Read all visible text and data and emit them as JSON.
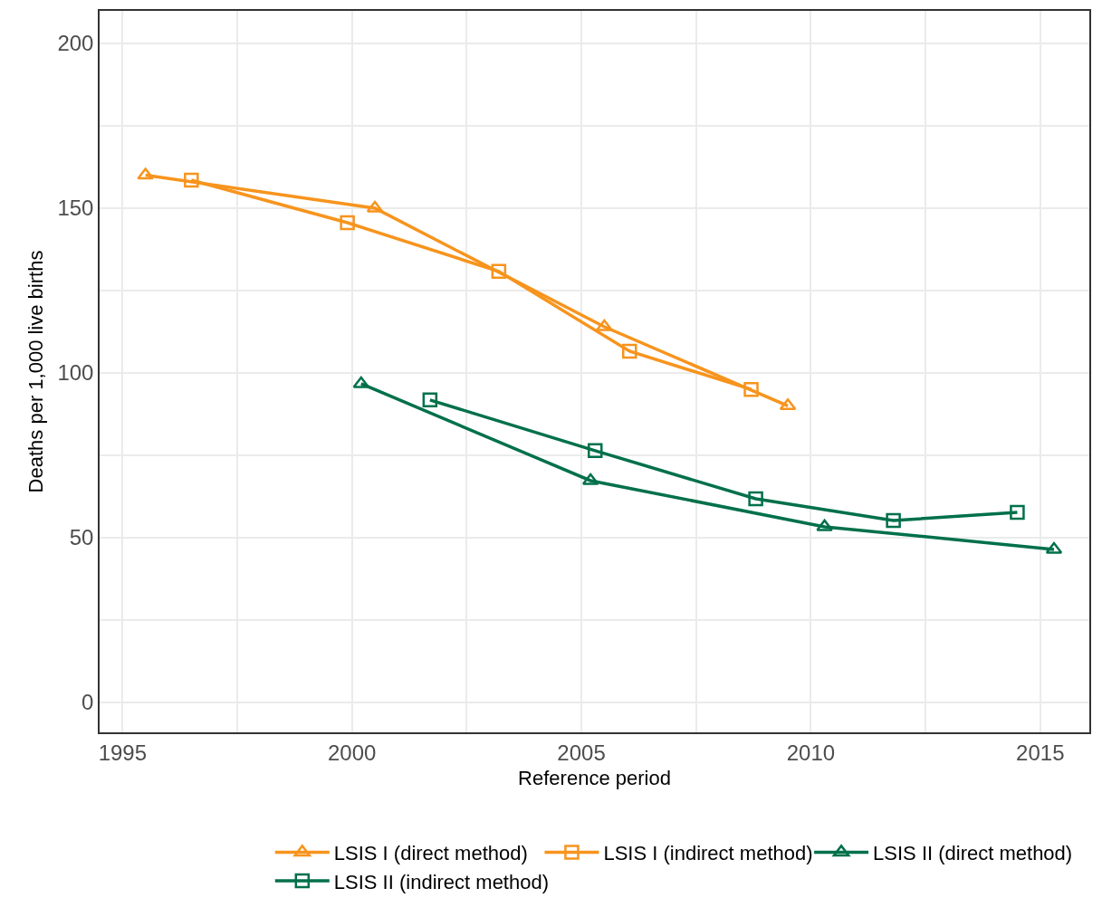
{
  "chart_data": {
    "type": "line",
    "xlabel": "Reference period",
    "ylabel": "Deaths per 1,000 live births",
    "xlim": [
      1994.5,
      2016.07
    ],
    "ylim": [
      -9.1,
      209.9
    ],
    "xticks": [
      1995,
      {
        "value": 1997.5,
        "label": null
      },
      2000,
      {
        "value": 2002.5,
        "label": null
      },
      2005,
      {
        "value": 2007.5,
        "label": null
      },
      2010,
      {
        "value": 2012.5,
        "label": null
      },
      2015
    ],
    "yticks": [
      0,
      {
        "value": 25,
        "label": null
      },
      50,
      {
        "value": 75,
        "label": null
      },
      100,
      {
        "value": 125,
        "label": null
      },
      150,
      {
        "value": 175,
        "label": null
      },
      200
    ],
    "grid": true,
    "legend": "bottom",
    "line_style": "solid",
    "series": [
      {
        "name": "LSIS I (direct method)",
        "color": "#f7941d",
        "marker": "triangle",
        "x": [
          1995.5,
          2000.5,
          2005.5,
          2009.5
        ],
        "values": [
          160,
          150,
          114,
          90
        ]
      },
      {
        "name": "LSIS I (indirect method)",
        "color": "#f7941d",
        "marker": "square",
        "x": [
          1996.5,
          1999.9,
          2003.2,
          2006.05,
          2008.7
        ],
        "values": [
          158.5,
          145.6,
          130.8,
          106.6,
          95
        ]
      },
      {
        "name": "LSIS II (direct method)",
        "color": "#00704a",
        "marker": "triangle",
        "x": [
          2000.2,
          2005.2,
          2010.3,
          2015.3
        ],
        "values": [
          96.7,
          67.3,
          53.3,
          46.4
        ]
      },
      {
        "name": "LSIS II (indirect method)",
        "color": "#00704a",
        "marker": "square",
        "x": [
          2001.7,
          2005.3,
          2008.8,
          2011.8,
          2014.5
        ],
        "values": [
          91.8,
          76.4,
          61.8,
          55.2,
          57.7
        ]
      }
    ]
  }
}
